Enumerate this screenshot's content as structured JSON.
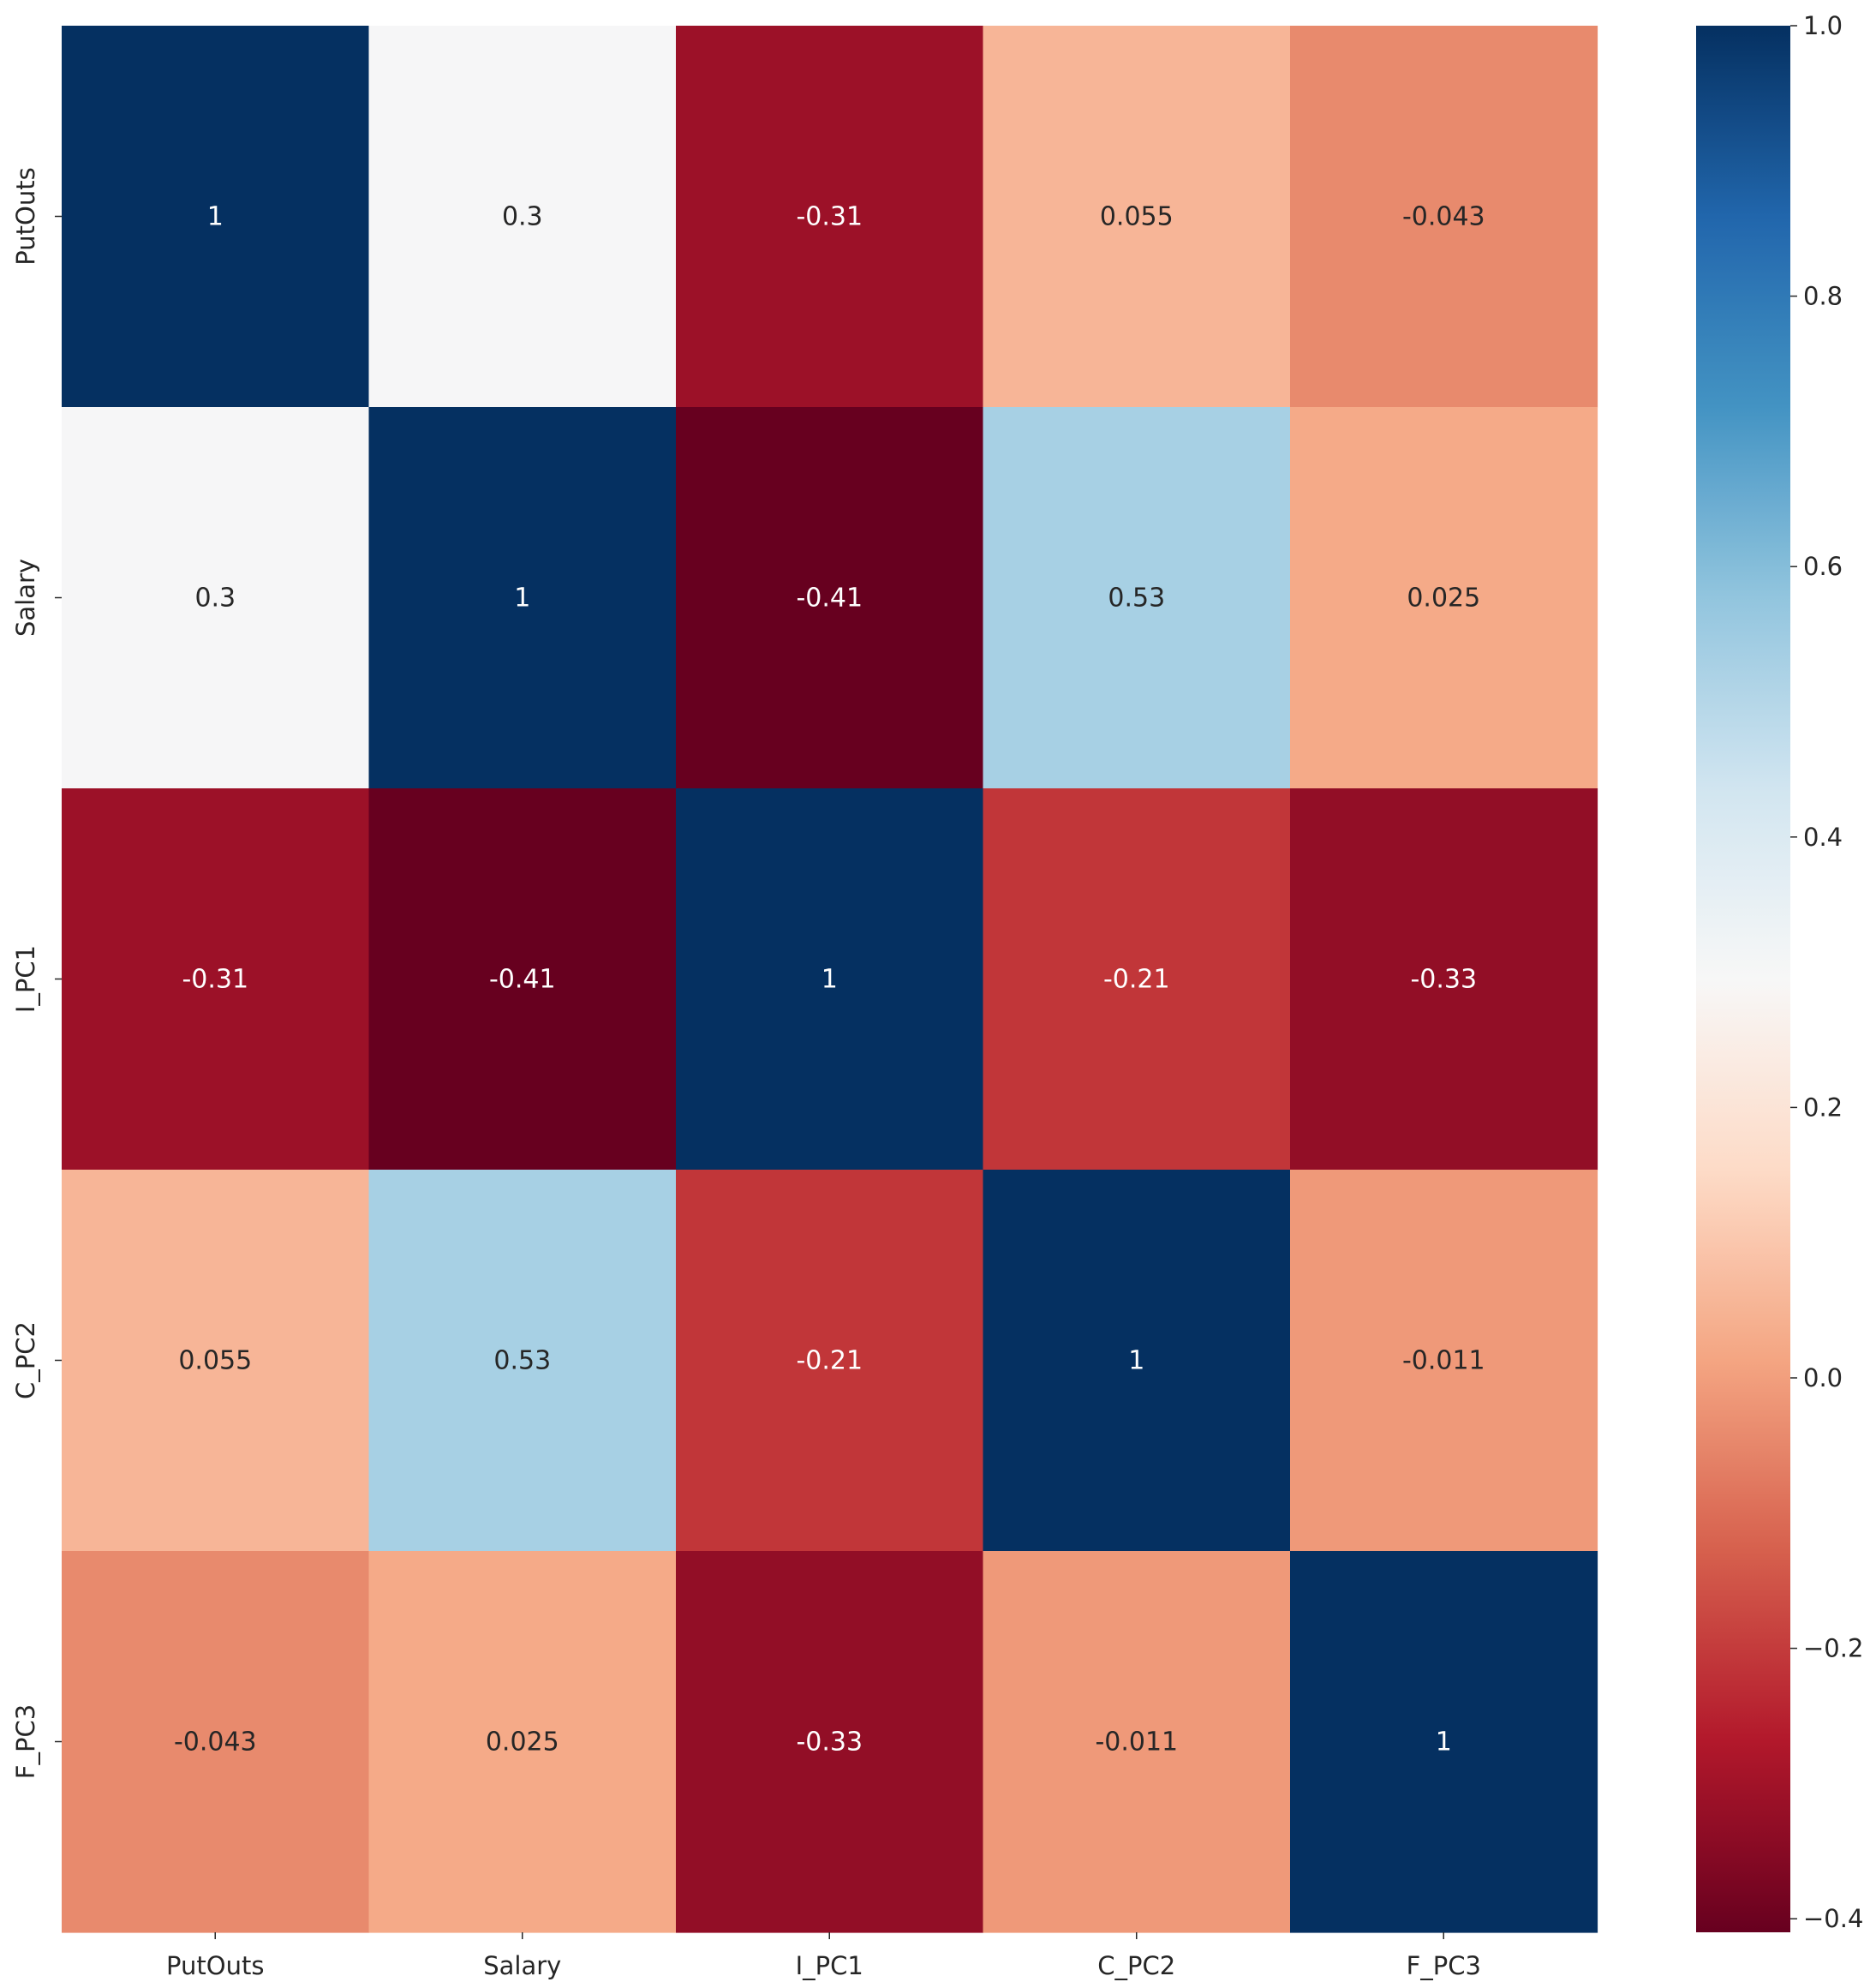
{
  "chart_data": {
    "type": "heatmap",
    "title": "",
    "xlabel": "",
    "ylabel": "",
    "x_labels": [
      "PutOuts",
      "Salary",
      "I_PC1",
      "C_PC2",
      "F_PC3"
    ],
    "y_labels": [
      "PutOuts",
      "Salary",
      "I_PC1",
      "C_PC2",
      "F_PC3"
    ],
    "values": [
      [
        1,
        0.3,
        -0.31,
        0.055,
        -0.043
      ],
      [
        0.3,
        1,
        -0.41,
        0.53,
        0.025
      ],
      [
        -0.31,
        -0.41,
        1,
        -0.21,
        -0.33
      ],
      [
        0.055,
        0.53,
        -0.21,
        1,
        -0.011
      ],
      [
        -0.043,
        0.025,
        -0.33,
        -0.011,
        1
      ]
    ],
    "annotations": [
      [
        "1",
        "0.3",
        "-0.31",
        "0.055",
        "-0.043"
      ],
      [
        "0.3",
        "1",
        "-0.41",
        "0.53",
        "0.025"
      ],
      [
        "-0.31",
        "-0.41",
        "1",
        "-0.21",
        "-0.33"
      ],
      [
        "0.055",
        "0.53",
        "-0.21",
        "1",
        "-0.011"
      ],
      [
        "-0.043",
        "0.025",
        "-0.33",
        "-0.011",
        "1"
      ]
    ],
    "colormap": "RdBu",
    "color_range": [
      -0.41,
      1
    ],
    "colorbar": {
      "position": "right",
      "ticks": [
        1.0,
        0.8,
        0.6,
        0.4,
        0.2,
        0.0,
        -0.2,
        -0.4
      ],
      "tick_labels": [
        "1.0",
        "0.8",
        "0.6",
        "0.4",
        "0.2",
        "0.0",
        "−0.2",
        "−0.4"
      ]
    },
    "colors": {
      "rdbu_stops": [
        "#67001f",
        "#b2182b",
        "#d6604d",
        "#f4a582",
        "#fddbc7",
        "#f7f7f7",
        "#d1e5f0",
        "#92c5de",
        "#4393c3",
        "#2166ac",
        "#053061"
      ],
      "annotation_dark_text": "#262626",
      "annotation_light_text": "#ffffff",
      "tick_text": "#262626"
    },
    "grid": false
  }
}
